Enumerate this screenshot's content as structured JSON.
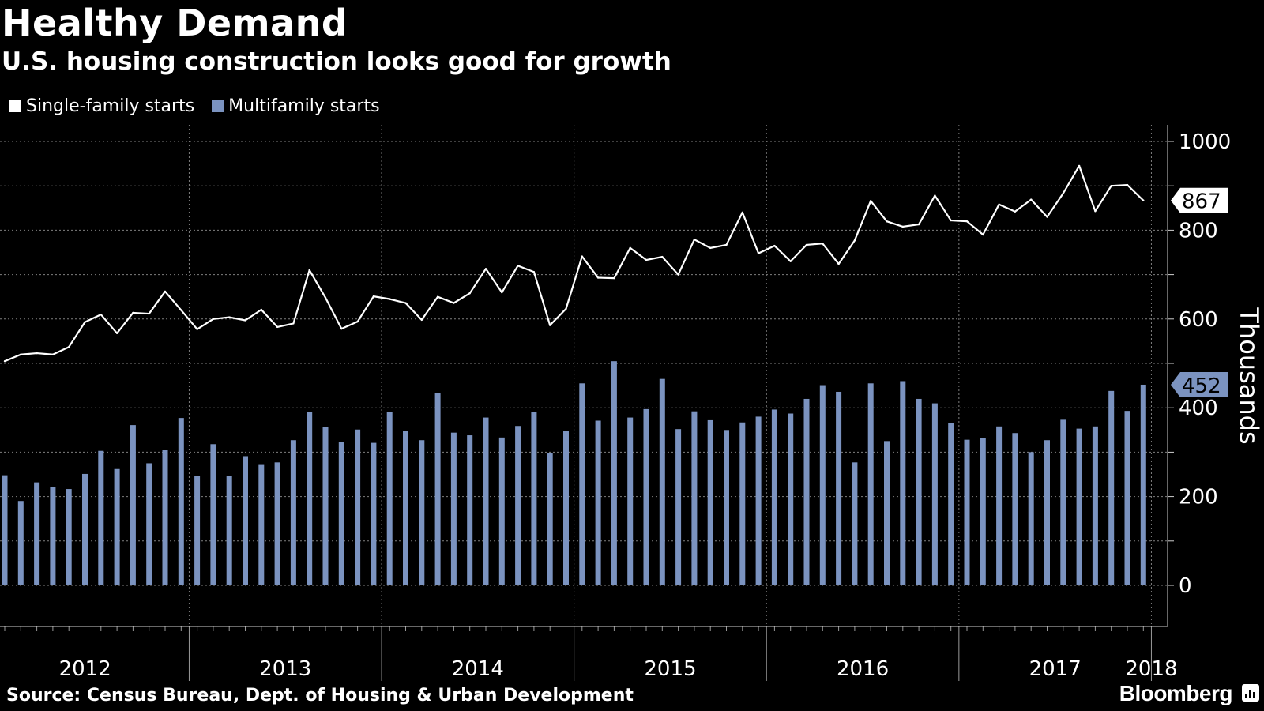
{
  "header": {
    "title": "Healthy Demand",
    "subtitle": "U.S. housing construction looks good for growth"
  },
  "legend": {
    "single_family": "Single-family starts",
    "multifamily": "Multifamily starts"
  },
  "footer": {
    "source": "Source: Census Bureau, Dept. of Housing & Urban Development",
    "brand": "Bloomberg"
  },
  "colors": {
    "background": "#000000",
    "line": "#ffffff",
    "bars": "#7b93c0",
    "grid": "#7f7f7f",
    "label_text_dark": "#000000"
  },
  "icons": {
    "brand": "bloomberg-terminal-icon"
  },
  "chart_data": {
    "type": "bar+line",
    "title": "Healthy Demand",
    "subtitle": "U.S. housing construction looks good for growth",
    "xlabel": "",
    "ylabel": "Thousands",
    "ylim": [
      -90,
      1030
    ],
    "yticks": [
      0,
      200,
      400,
      600,
      800,
      1000
    ],
    "grid": true,
    "legend_placement": "top-left",
    "period": "monthly, Jan 2012 - Feb 2018",
    "year_labels": [
      "2012",
      "2013",
      "2014",
      "2015",
      "2016",
      "2017",
      "2018"
    ],
    "series": [
      {
        "name": "Single-family starts",
        "type": "line",
        "last_value_label": "867",
        "values": [
          505,
          520,
          523,
          520,
          537,
          593,
          610,
          568,
          614,
          612,
          662,
          620,
          577,
          600,
          604,
          597,
          621,
          582,
          590,
          710,
          648,
          578,
          594,
          651,
          645,
          636,
          598,
          650,
          636,
          658,
          713,
          660,
          720,
          706,
          586,
          623,
          741,
          693,
          692,
          760,
          733,
          740,
          700,
          779,
          760,
          767,
          840,
          748,
          765,
          730,
          767,
          770,
          724,
          777,
          866,
          820,
          808,
          813,
          878,
          822,
          820,
          790,
          858,
          842,
          869,
          830,
          883,
          945,
          843,
          900,
          902,
          867
        ]
      },
      {
        "name": "Multifamily starts",
        "type": "bar",
        "last_value_label": "452",
        "values": [
          248,
          190,
          232,
          222,
          217,
          251,
          303,
          262,
          361,
          275,
          306,
          377,
          247,
          318,
          246,
          291,
          273,
          277,
          327,
          391,
          357,
          323,
          351,
          321,
          391,
          348,
          327,
          434,
          344,
          338,
          378,
          333,
          359,
          391,
          298,
          348,
          455,
          371,
          505,
          378,
          397,
          465,
          352,
          392,
          372,
          350,
          367,
          380,
          396,
          387,
          420,
          451,
          436,
          277,
          455,
          325,
          460,
          420,
          410,
          365,
          328,
          332,
          358,
          343,
          300,
          327,
          373,
          353,
          358,
          438,
          393,
          452
        ]
      }
    ]
  }
}
